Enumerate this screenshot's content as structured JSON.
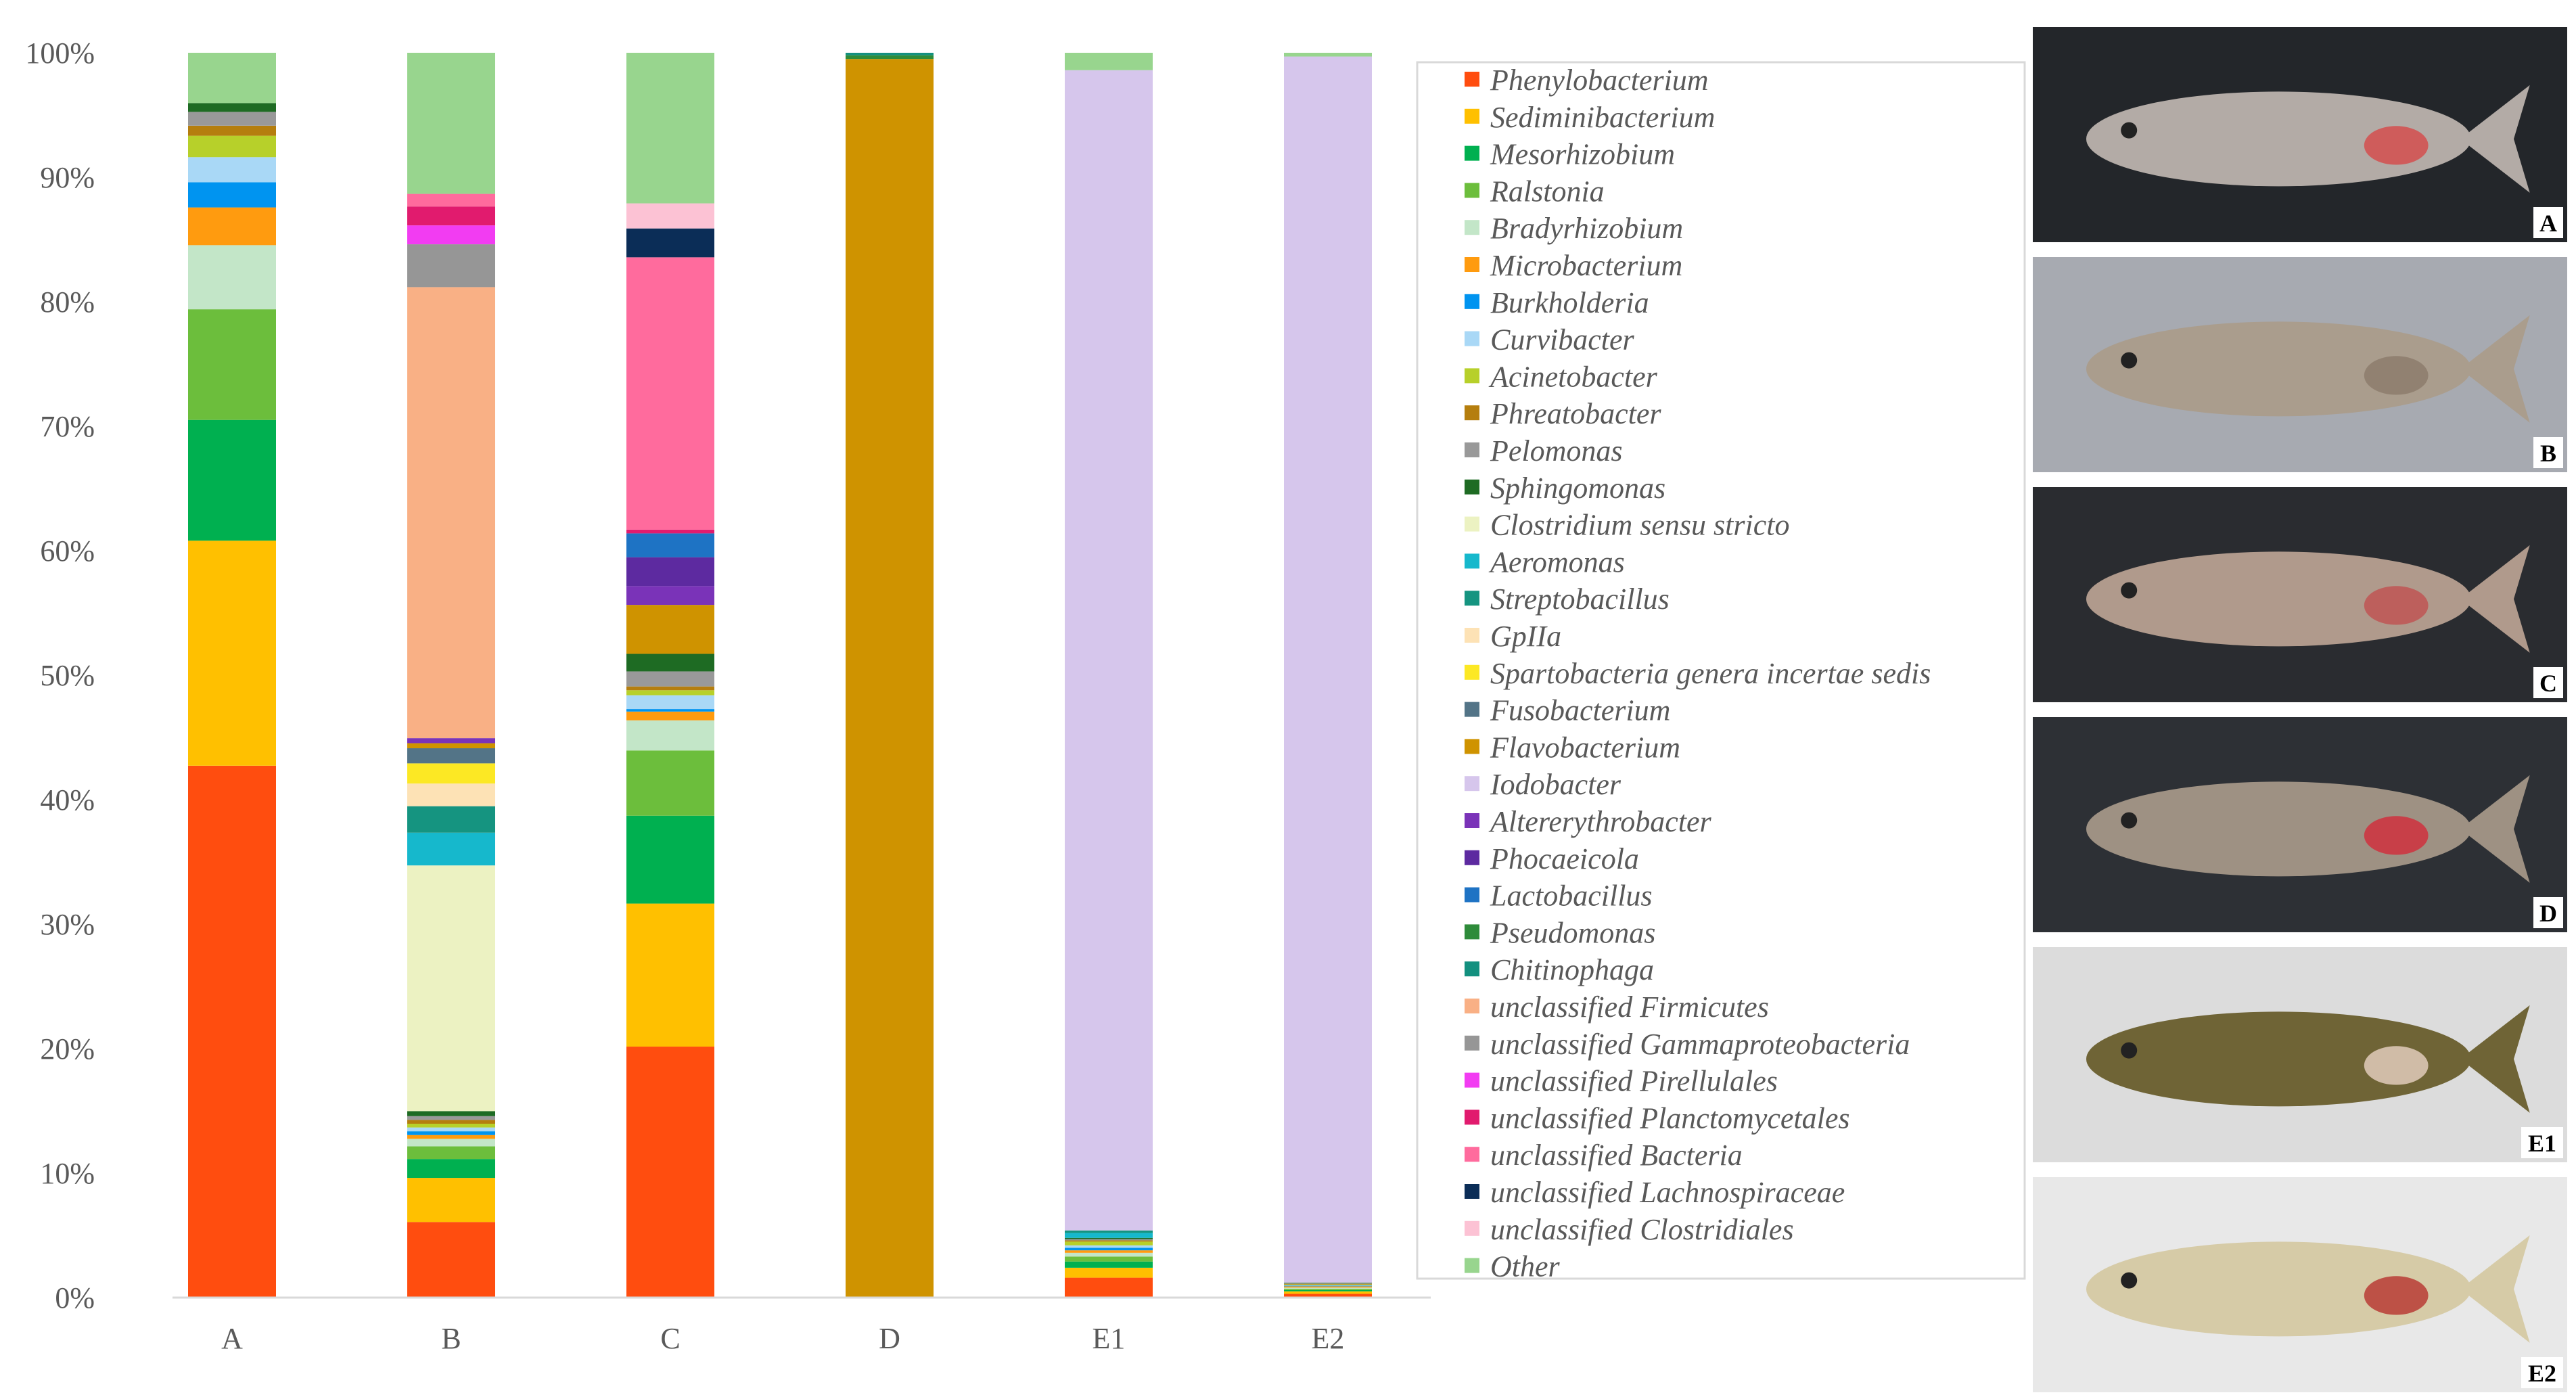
{
  "colors": {
    "Phenylobacterium": "#ff4d0f",
    "Sediminibacterium": "#ffc000",
    "Mesorhizobium": "#00b050",
    "Ralstonia": "#6cbe3c",
    "Bradyrhizobium": "#c3e6c8",
    "Microbacterium": "#ff9b0f",
    "Burkholderia": "#0094f0",
    "Curvibacter": "#a9d8f6",
    "Acinetobacter": "#b7d02a",
    "Phreatobacter": "#b57e0e",
    "Pelomonas": "#999999",
    "Sphingomonas": "#1e6b23",
    "Clostridium sensu stricto": "#ecf2c2",
    "Aeromonas": "#16b8cc",
    "Streptobacillus": "#159480",
    "GpIIa": "#fde2b5",
    "Spartobacteria genera incertae sedis": "#fce824",
    "Fusobacterium": "#537487",
    "Flavobacterium": "#cf9300",
    "Iodobacter": "#d6c6ec",
    "Altererythrobacter": "#7a33b8",
    "Phocaeicola": "#5d2aa0",
    "Lactobacillus": "#1e73c4",
    "Pseudomonas": "#2e8b3a",
    "Chitinophaga": "#13907f",
    "unclassified Firmicutes": "#f9b085",
    "unclassified Gammaproteobacteria": "#969696",
    "unclassified Pirellulales": "#f23cf2",
    "unclassified Planctomycetales": "#e11b6e",
    "unclassified Bacteria": "#ff6b9d",
    "unclassified Lachnospiraceae": "#0b2d57",
    "unclassified Clostridiales": "#fcc2d4",
    "Other": "#98d58e"
  },
  "chart_data": {
    "type": "bar",
    "stacked": true,
    "percent": true,
    "ylim": [
      0,
      100
    ],
    "yticks": [
      "0%",
      "10%",
      "20%",
      "30%",
      "40%",
      "50%",
      "60%",
      "70%",
      "80%",
      "90%",
      "100%"
    ],
    "categories": [
      "A",
      "B",
      "C",
      "D",
      "E1",
      "E2"
    ],
    "legend": [
      "Phenylobacterium",
      "Sediminibacterium",
      "Mesorhizobium",
      "Ralstonia",
      "Bradyrhizobium",
      "Microbacterium",
      "Burkholderia",
      "Curvibacter",
      "Acinetobacter",
      "Phreatobacter",
      "Pelomonas",
      "Sphingomonas",
      "Clostridium sensu stricto",
      "Aeromonas",
      "Streptobacillus",
      "GpIIa",
      "Spartobacteria genera incertae sedis",
      "Fusobacterium",
      "Flavobacterium",
      "Iodobacter",
      "Altererythrobacter",
      "Phocaeicola",
      "Lactobacillus",
      "Pseudomonas",
      "Chitinophaga",
      "unclassified Firmicutes",
      "unclassified Gammaproteobacteria",
      "unclassified Pirellulales",
      "unclassified Planctomycetales",
      "unclassified Bacteria",
      "unclassified Lachnospiraceae",
      "unclassified Clostridiales",
      "Other"
    ],
    "series": [
      {
        "name": "Phenylobacterium",
        "values": [
          42.3,
          6.0,
          20.0,
          0,
          1.6,
          0.3
        ]
      },
      {
        "name": "Sediminibacterium",
        "values": [
          17.9,
          3.5,
          11.4,
          0,
          0.8,
          0.2
        ]
      },
      {
        "name": "Mesorhizobium",
        "values": [
          9.6,
          1.5,
          7.0,
          0,
          0.5,
          0.1
        ]
      },
      {
        "name": "Ralstonia",
        "values": [
          8.8,
          1.0,
          5.2,
          0,
          0.4,
          0.1
        ]
      },
      {
        "name": "Bradyrhizobium",
        "values": [
          5.1,
          0.6,
          2.4,
          0,
          0.3,
          0.1
        ]
      },
      {
        "name": "Microbacterium",
        "values": [
          3.0,
          0.3,
          0.7,
          0,
          0.2,
          0.1
        ]
      },
      {
        "name": "Burkholderia",
        "values": [
          2.0,
          0.3,
          0.2,
          0,
          0.2,
          0.05
        ]
      },
      {
        "name": "Curvibacter",
        "values": [
          2.0,
          0.3,
          1.1,
          0,
          0.2,
          0.05
        ]
      },
      {
        "name": "Acinetobacter",
        "values": [
          1.7,
          0.3,
          0.4,
          0,
          0.3,
          0.05
        ]
      },
      {
        "name": "Phreatobacter",
        "values": [
          0.8,
          0.3,
          0.3,
          0,
          0.1,
          0.05
        ]
      },
      {
        "name": "Pelomonas",
        "values": [
          1.1,
          0.3,
          1.2,
          0,
          0.1,
          0.05
        ]
      },
      {
        "name": "Sphingomonas",
        "values": [
          0.7,
          0.4,
          1.4,
          0,
          0.1,
          0.05
        ]
      },
      {
        "name": "Clostridium sensu stricto",
        "values": [
          0,
          19.5,
          0,
          0,
          0,
          0
        ]
      },
      {
        "name": "Aeromonas",
        "values": [
          0,
          2.6,
          0,
          0,
          0.4,
          0
        ]
      },
      {
        "name": "Streptobacillus",
        "values": [
          0,
          2.1,
          0,
          0,
          0.2,
          0
        ]
      },
      {
        "name": "GpIIa",
        "values": [
          0,
          1.8,
          0,
          0,
          0,
          0
        ]
      },
      {
        "name": "Spartobacteria genera incertae sedis",
        "values": [
          0,
          1.6,
          0,
          0,
          0,
          0
        ]
      },
      {
        "name": "Fusobacterium",
        "values": [
          0,
          1.2,
          0,
          0,
          0,
          0
        ]
      },
      {
        "name": "Flavobacterium",
        "values": [
          0,
          0.4,
          3.9,
          99.5,
          0,
          0
        ]
      },
      {
        "name": "Iodobacter",
        "values": [
          0,
          0,
          0,
          0,
          93.3,
          98.2
        ]
      },
      {
        "name": "Altererythrobacter",
        "values": [
          0,
          0.4,
          1.5,
          0,
          0,
          0
        ]
      },
      {
        "name": "Phocaeicola",
        "values": [
          0,
          0,
          2.3,
          0,
          0,
          0
        ]
      },
      {
        "name": "Lactobacillus",
        "values": [
          0,
          0,
          1.9,
          0,
          0,
          0
        ]
      },
      {
        "name": "Pseudomonas",
        "values": [
          0,
          0,
          0,
          0.3,
          0,
          0
        ]
      },
      {
        "name": "Chitinophaga",
        "values": [
          0,
          0,
          0,
          0.2,
          0,
          0
        ]
      },
      {
        "name": "unclassified Firmicutes",
        "values": [
          0,
          35.8,
          0,
          0,
          0,
          0
        ]
      },
      {
        "name": "unclassified Gammaproteobacteria",
        "values": [
          0,
          3.4,
          0,
          0,
          0,
          0
        ]
      },
      {
        "name": "unclassified Pirellulales",
        "values": [
          0,
          1.5,
          0,
          0,
          0,
          0
        ]
      },
      {
        "name": "unclassified Planctomycetales",
        "values": [
          0,
          1.5,
          0.3,
          0,
          0,
          0
        ]
      },
      {
        "name": "unclassified Bacteria",
        "values": [
          0,
          1.0,
          21.7,
          0,
          0,
          0
        ]
      },
      {
        "name": "unclassified Lachnospiraceae",
        "values": [
          0,
          0,
          2.3,
          0,
          0,
          0
        ]
      },
      {
        "name": "unclassified Clostridiales",
        "values": [
          0,
          0,
          2.0,
          0,
          0,
          0
        ]
      },
      {
        "name": "Other",
        "values": [
          4.0,
          11.2,
          12.0,
          0,
          1.4,
          0.3
        ]
      }
    ]
  },
  "photos": [
    {
      "label": "A",
      "body": "#b3aba6",
      "bg": "#23262a",
      "accent": "#d64848"
    },
    {
      "label": "B",
      "body": "#aa9d8d",
      "bg": "#a7aab1",
      "accent": "#8b7b6a"
    },
    {
      "label": "C",
      "body": "#b09a8c",
      "bg": "#2a2c30",
      "accent": "#c05050"
    },
    {
      "label": "D",
      "body": "#9e9183",
      "bg": "#2d3035",
      "accent": "#d22a3a"
    },
    {
      "label": "E1",
      "body": "#6f6436",
      "bg": "#dcdcdc",
      "accent": "#e8d2c4"
    },
    {
      "label": "E2",
      "body": "#d6cba7",
      "bg": "#e8e8e8",
      "accent": "#b7322e"
    }
  ]
}
